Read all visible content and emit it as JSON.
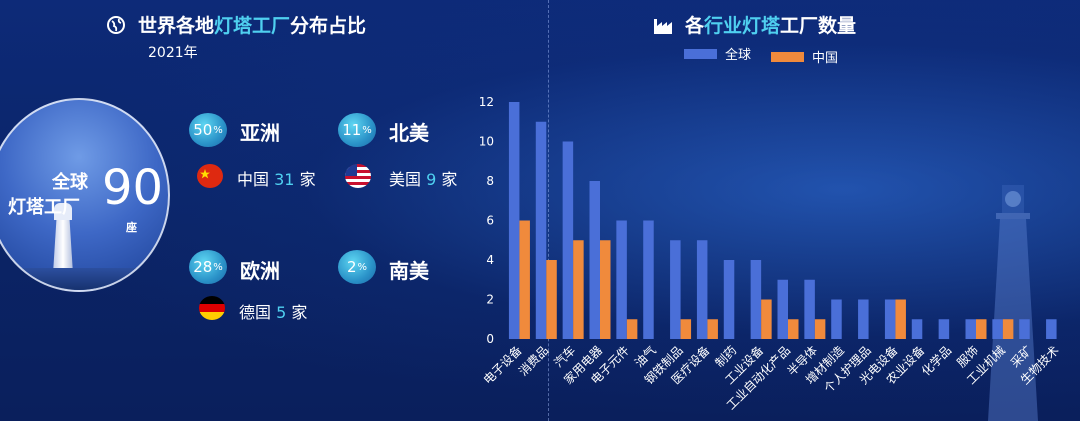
{
  "left": {
    "title_pre": "世界各地",
    "title_hl": "灯塔工厂",
    "title_post": "分布占比",
    "year": "2021年",
    "circle": {
      "line1": "全球",
      "line2": "灯塔工厂",
      "number": "90",
      "unit": "座"
    },
    "regions": [
      {
        "pct": "50",
        "unit": "%",
        "name": "亚洲"
      },
      {
        "pct": "11",
        "unit": "%",
        "name": "北美"
      },
      {
        "pct": "28",
        "unit": "%",
        "name": "欧洲"
      },
      {
        "pct": "2",
        "unit": "%",
        "name": "南美"
      }
    ],
    "countries": [
      {
        "name": "中国",
        "count": "31",
        "suffix": "家",
        "flag": "china-flag-icon"
      },
      {
        "name": "美国",
        "count": "9",
        "suffix": "家",
        "flag": "usa-flag-icon"
      },
      {
        "name": "德国",
        "count": "5",
        "suffix": "家",
        "flag": "germany-flag-icon"
      }
    ],
    "icons": {
      "title": "globe-icon"
    }
  },
  "right": {
    "title_pre": "各",
    "title_hl": "行业灯塔",
    "title_post": "工厂数量",
    "icons": {
      "title": "factory-icon"
    }
  },
  "colors": {
    "global": "#4a6fd8",
    "china": "#f08a3c",
    "highlight": "#4fd0f0"
  },
  "chart_data": {
    "type": "bar",
    "categories": [
      "电子设备",
      "消费品",
      "汽车",
      "家用电器",
      "电子元件",
      "油气",
      "钢铁制品",
      "医疗设备",
      "制药",
      "工业设备",
      "工业自动化产品",
      "半导体",
      "增材制造",
      "个人护理品",
      "光电设备",
      "农业设备",
      "化学品",
      "服饰",
      "工业机械",
      "采矿",
      "生物技术"
    ],
    "series": [
      {
        "name": "全球",
        "values": [
          12,
          11,
          10,
          8,
          6,
          6,
          5,
          5,
          4,
          4,
          3,
          3,
          2,
          2,
          2,
          1,
          1,
          1,
          1,
          1,
          1
        ]
      },
      {
        "name": "中国",
        "values": [
          6,
          4,
          5,
          5,
          1,
          0,
          1,
          1,
          0,
          2,
          1,
          1,
          0,
          0,
          2,
          0,
          0,
          1,
          1,
          0,
          0
        ]
      }
    ],
    "ylim": [
      0,
      12
    ],
    "yticks": [
      0,
      2,
      4,
      6,
      8,
      10,
      12
    ],
    "legend_position": "top-center",
    "grid": false
  }
}
